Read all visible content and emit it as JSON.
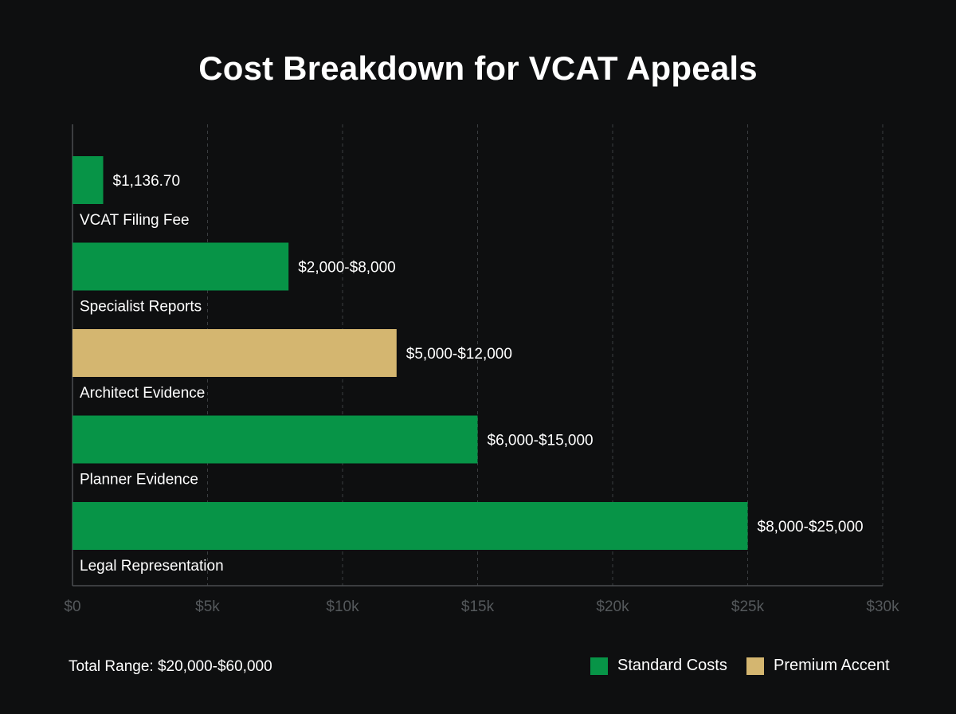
{
  "chart_data": {
    "type": "bar",
    "orientation": "horizontal",
    "title": "Cost Breakdown for VCAT Appeals",
    "xlabel": "",
    "ylabel": "",
    "xlim": [
      0,
      30000
    ],
    "x_ticks": [
      0,
      5000,
      10000,
      15000,
      20000,
      25000,
      30000
    ],
    "x_tick_labels": [
      "$0",
      "$5k",
      "$10k",
      "$15k",
      "$20k",
      "$25k",
      "$30k"
    ],
    "grid": true,
    "legend_position": "bottom-right",
    "bars": [
      {
        "category": "VCAT Filing Fee",
        "value": 1136.7,
        "label": "$1,136.70",
        "series": "Standard Costs"
      },
      {
        "category": "Specialist Reports",
        "value": 8000,
        "label": "$2,000-$8,000",
        "series": "Standard Costs"
      },
      {
        "category": "Architect Evidence",
        "value": 12000,
        "label": "$5,000-$12,000",
        "series": "Premium Accent"
      },
      {
        "category": "Planner Evidence",
        "value": 15000,
        "label": "$6,000-$15,000",
        "series": "Standard Costs"
      },
      {
        "category": "Legal Representation",
        "value": 25000,
        "label": "$8,000-$25,000",
        "series": "Standard Costs"
      }
    ],
    "series": [
      {
        "name": "Standard Costs",
        "color": "#079447"
      },
      {
        "name": "Premium Accent",
        "color": "#d4b670"
      }
    ]
  },
  "footer": {
    "total_label": "Total Range: $20,000-$60,000"
  }
}
